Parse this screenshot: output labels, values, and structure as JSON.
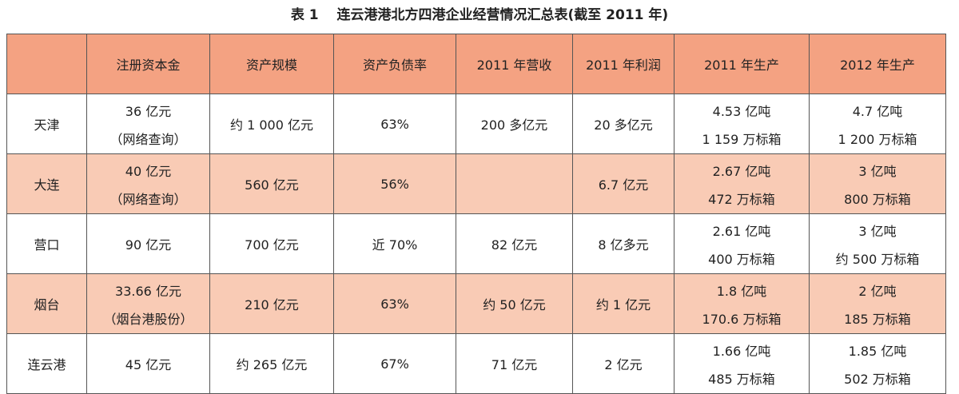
{
  "title": "表 1　 连云港港北方四港企业经营情况汇总表(截至 2011 年)",
  "table": {
    "header": [
      "注册资本金",
      "资产规模",
      "资产负债率",
      "2011 年营收",
      "2011 年利润",
      "2011 年生产",
      "2012 年生产"
    ],
    "rows": [
      {
        "port": "天津",
        "cells": [
          [
            "36 亿元",
            "（网络查询）"
          ],
          [
            "约 1 000 亿元"
          ],
          [
            "63%"
          ],
          [
            "200 多亿元"
          ],
          [
            "20 多亿元"
          ],
          [
            "4.53 亿吨",
            "1 159 万标箱"
          ],
          [
            "4.7 亿吨",
            "1 200 万标箱"
          ]
        ]
      },
      {
        "port": "大连",
        "cells": [
          [
            "40 亿元",
            "（网络查询）"
          ],
          [
            "560 亿元"
          ],
          [
            "56%"
          ],
          [],
          [
            "6.7 亿元"
          ],
          [
            "2.67 亿吨",
            "472 万标箱"
          ],
          [
            "3 亿吨",
            "800 万标箱"
          ]
        ]
      },
      {
        "port": "营口",
        "cells": [
          [
            "90 亿元"
          ],
          [
            "700 亿元"
          ],
          [
            "近 70%"
          ],
          [
            "82 亿元"
          ],
          [
            "8 亿多元"
          ],
          [
            "2.61 亿吨",
            "400 万标箱"
          ],
          [
            "3 亿吨",
            "约 500 万标箱"
          ]
        ]
      },
      {
        "port": "烟台",
        "cells": [
          [
            "33.66 亿元",
            "（烟台港股份）"
          ],
          [
            "210 亿元"
          ],
          [
            "63%"
          ],
          [
            "约 50 亿元"
          ],
          [
            "约 1 亿元"
          ],
          [
            "1.8 亿吨",
            "170.6 万标箱"
          ],
          [
            "2 亿吨",
            "185 万标箱"
          ]
        ]
      },
      {
        "port": "连云港",
        "cells": [
          [
            "45 亿元"
          ],
          [
            "约 265 亿元"
          ],
          [
            "67%"
          ],
          [
            "71 亿元"
          ],
          [
            "2 亿元"
          ],
          [
            "1.66 亿吨",
            "485 万标箱"
          ],
          [
            "1.85 亿吨",
            "502 万标箱"
          ]
        ]
      }
    ]
  }
}
